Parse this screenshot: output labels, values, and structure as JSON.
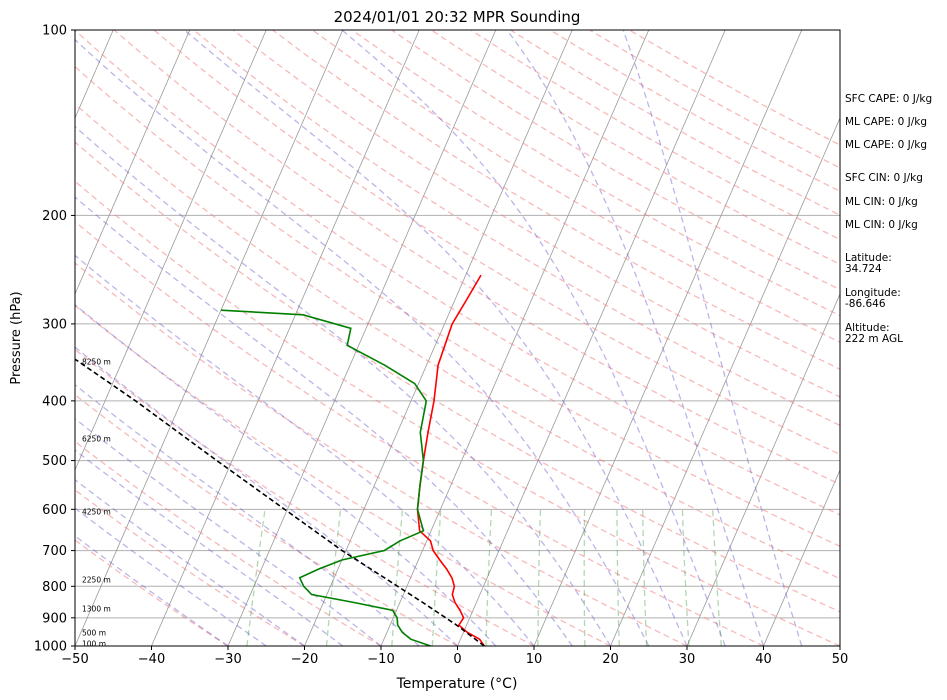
{
  "chart_data": {
    "type": "line",
    "title": "2024/01/01 20:32 MPR Sounding",
    "xlabel": "Temperature (°C)",
    "ylabel": "Pressure (hPa)",
    "xlim": [
      -50,
      50
    ],
    "ylim": [
      1000,
      100
    ],
    "y_scale": "log",
    "grid": true,
    "x_ticks": [
      -50,
      -40,
      -30,
      -20,
      -10,
      0,
      10,
      20,
      30,
      40,
      50
    ],
    "y_ticks": [
      100,
      200,
      300,
      400,
      500,
      600,
      700,
      800,
      900,
      1000
    ],
    "skew_t": true,
    "series": [
      {
        "color": "#ff0000",
        "points": [
          [
            1000,
            3.5
          ],
          [
            975,
            2.5
          ],
          [
            950,
            0.5
          ],
          [
            925,
            -1.0
          ],
          [
            900,
            -0.8
          ],
          [
            875,
            -1.7
          ],
          [
            850,
            -2.8
          ],
          [
            825,
            -3.6
          ],
          [
            800,
            -3.8
          ],
          [
            775,
            -4.6
          ],
          [
            750,
            -5.8
          ],
          [
            725,
            -7.2
          ],
          [
            700,
            -8.6
          ],
          [
            675,
            -9.5
          ],
          [
            650,
            -11.5
          ],
          [
            600,
            -13.0
          ],
          [
            550,
            -14.0
          ],
          [
            500,
            -15.0
          ],
          [
            450,
            -16.0
          ],
          [
            400,
            -17.0
          ],
          [
            350,
            -18.5
          ],
          [
            300,
            -19.0
          ],
          [
            275,
            -18.5
          ],
          [
            250,
            -18.0
          ]
        ]
      },
      {
        "color": "#008000",
        "points": [
          [
            1000,
            -3.5
          ],
          [
            975,
            -6.5
          ],
          [
            950,
            -8.0
          ],
          [
            925,
            -9.0
          ],
          [
            900,
            -9.5
          ],
          [
            875,
            -10.5
          ],
          [
            850,
            -16.0
          ],
          [
            825,
            -22.0
          ],
          [
            800,
            -23.5
          ],
          [
            775,
            -24.5
          ],
          [
            750,
            -22.5
          ],
          [
            725,
            -20.0
          ],
          [
            700,
            -15.0
          ],
          [
            675,
            -13.5
          ],
          [
            650,
            -11.0
          ],
          [
            600,
            -13.0
          ],
          [
            550,
            -14.0
          ],
          [
            500,
            -15.0
          ],
          [
            450,
            -17.0
          ],
          [
            400,
            -18.0
          ],
          [
            375,
            -20.5
          ],
          [
            350,
            -25.5
          ],
          [
            325,
            -31.5
          ],
          [
            305,
            -32.0
          ],
          [
            290,
            -39.0
          ],
          [
            285,
            -50.0
          ]
        ]
      },
      {
        "color": "#000000",
        "dashed": true,
        "points": [
          [
            1000,
            3.5
          ],
          [
            925,
            -1.3
          ],
          [
            850,
            -7.0
          ],
          [
            700,
            -20.5
          ],
          [
            500,
            -42.0
          ],
          [
            400,
            -56.0
          ],
          [
            300,
            -75.0
          ],
          [
            285,
            -78.5
          ]
        ]
      }
    ],
    "height_labels": [
      {
        "text": "100 m",
        "p": 990
      },
      {
        "text": "500 m",
        "p": 950
      },
      {
        "text": "1300 m",
        "p": 870
      },
      {
        "text": "2250 m",
        "p": 780
      },
      {
        "text": "4250 m",
        "p": 605
      },
      {
        "text": "6250 m",
        "p": 460
      },
      {
        "text": "8250 m",
        "p": 345
      }
    ]
  },
  "annotations": {
    "sfc_cape": "SFC CAPE: 0 J/kg",
    "ml_cape_1": "ML CAPE: 0 J/kg",
    "ml_cape_2": "ML CAPE: 0 J/kg",
    "sfc_cin": "SFC CIN: 0 J/kg",
    "ml_cin_1": "ML CIN: 0 J/kg",
    "ml_cin_2": "ML CIN: 0 J/kg",
    "latitude_label": "Latitude:",
    "latitude_value": "34.724",
    "longitude_label": "Longitude:",
    "longitude_value": "-86.646",
    "altitude_label": "Altitude:",
    "altitude_value": "222 m AGL"
  },
  "colors": {
    "temperature": "#ff0000",
    "dewpoint": "#008000",
    "parcel": "#000000",
    "dry_adiabats": "#f08080",
    "moist_adiabats": "#6a5acd",
    "mixing_ratio": "#228b22",
    "isotherms": "#808080"
  }
}
